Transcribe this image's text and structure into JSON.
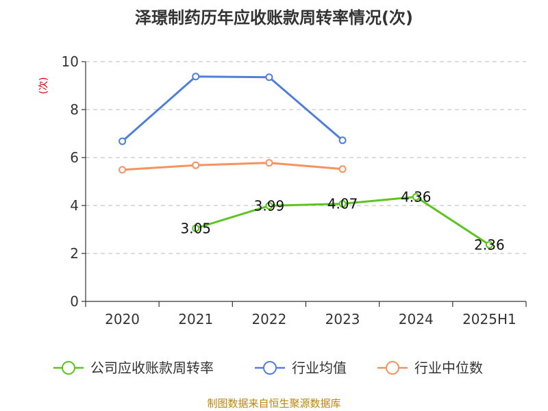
{
  "chart_data": {
    "type": "line",
    "title": "泽璟制药历年应收账款周转率情况(次)",
    "ylabel": "(次)",
    "xlabel": "",
    "categories": [
      "2020",
      "2021",
      "2022",
      "2023",
      "2024",
      "2025H1"
    ],
    "yticks": [
      "0",
      "2",
      "4",
      "6",
      "8",
      "10"
    ],
    "ylim": [
      0,
      10
    ],
    "grid": true,
    "legend_position": "bottom",
    "series": [
      {
        "name": "公司应收账款周转率",
        "color": "#5cc41f",
        "values": [
          null,
          3.05,
          3.99,
          4.07,
          4.36,
          2.36
        ],
        "labels": [
          "",
          "3.05",
          "3.99",
          "4.07",
          "4.36",
          "2.36"
        ],
        "show_labels": true
      },
      {
        "name": "行业均值",
        "color": "#4f7fd9",
        "values": [
          6.68,
          9.38,
          9.35,
          6.72,
          null,
          null
        ],
        "show_labels": false
      },
      {
        "name": "行业中位数",
        "color": "#f5925e",
        "values": [
          5.49,
          5.68,
          5.78,
          5.52,
          null,
          null
        ],
        "show_labels": false
      }
    ]
  },
  "footer": {
    "source": "制图数据来自恒生聚源数据库"
  }
}
